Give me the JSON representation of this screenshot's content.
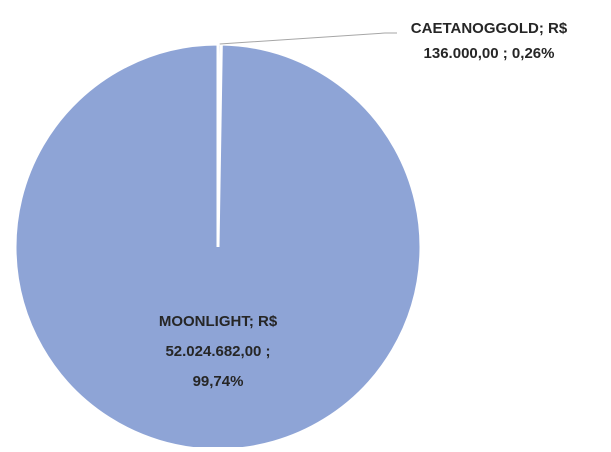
{
  "chart_data": {
    "type": "pie",
    "values": [
      136000.0,
      52024682.0
    ],
    "value_labels": [
      [
        "CAETANOGGOLD; R$",
        "136.000,00 ; 0,26%"
      ],
      [
        "MOONLIGHT; R$",
        "52.024.682,00 ;",
        "99,74%"
      ]
    ],
    "color": "#8ea4d6"
  }
}
